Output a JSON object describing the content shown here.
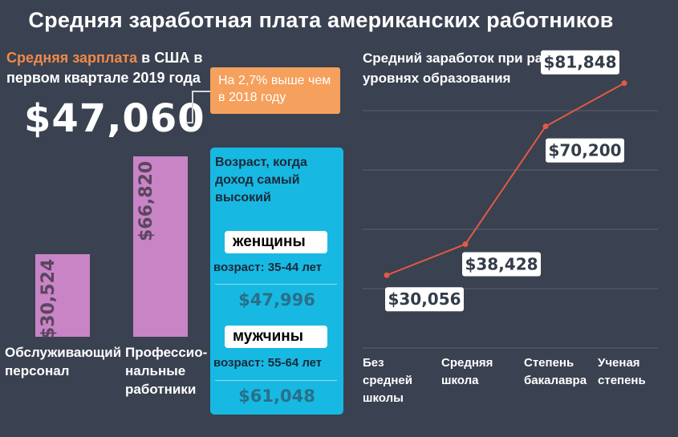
{
  "title": "Средняя заработная плата американских работников",
  "subhead": {
    "accent": "Средняя зарплата",
    "rest_line1": " в США в",
    "rest_line2": "первом квартале 2019 года"
  },
  "big_number": "$47,060",
  "callout": "На 2,7% выше чем в 2018 году",
  "bar_chart": {
    "categories": [
      [
        "Обслуживающий",
        "персонал"
      ],
      [
        "Профессио-",
        "нальные",
        "работники"
      ]
    ],
    "value_labels": [
      "$30,524",
      "$66,820"
    ]
  },
  "age_panel": {
    "title": "Возраст, когда доход самый высокий",
    "women": {
      "label": "женщины",
      "age": "возраст: 35-44 лет",
      "value": "$47,996"
    },
    "men": {
      "label": "мужчины",
      "age": "возраст: 55-64 лет",
      "value": "$61,048"
    }
  },
  "line_title": "Средний заработок при разных уровнях образования",
  "chart_data": [
    {
      "type": "bar",
      "categories": [
        "Обслуживающий персонал",
        "Профессио-нальные работники"
      ],
      "values": [
        30524,
        66820
      ],
      "title": "",
      "ylim": [
        0,
        70000
      ],
      "color": "#c984c6"
    },
    {
      "type": "line",
      "title": "Средний заработок при разных уровнях образования",
      "categories": [
        "Без средней школы",
        "Средняя школа",
        "Степень бакалавра",
        "Ученая степень"
      ],
      "values": [
        30056,
        38428,
        70200,
        81848
      ],
      "value_labels": [
        "$30,056",
        "$38,428",
        "$70,200",
        "$81,848"
      ],
      "ylim": [
        10000,
        90000
      ],
      "grid": true,
      "color": "#e05a45"
    }
  ],
  "colors": {
    "background": "#3a4150",
    "accent_orange": "#f0894a",
    "bar": "#c984c6",
    "panel": "#17b9e2",
    "line": "#e05a45"
  }
}
